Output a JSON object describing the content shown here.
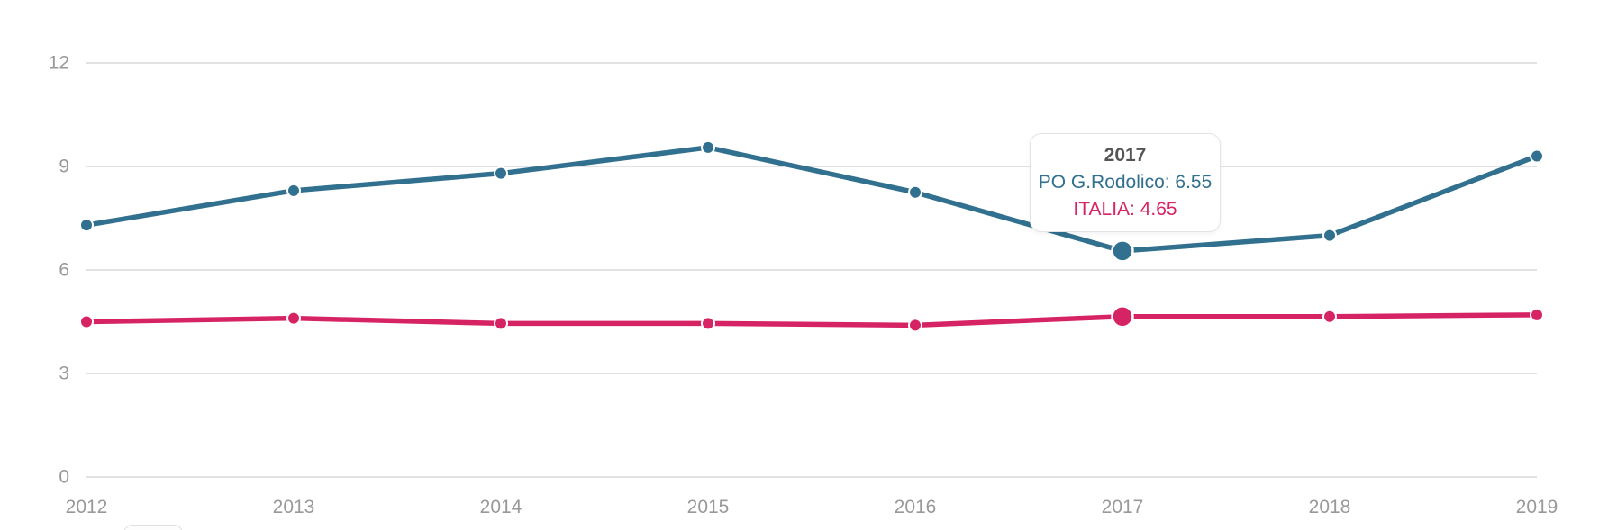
{
  "chart_data": {
    "type": "line",
    "categories": [
      "2012",
      "2013",
      "2014",
      "2015",
      "2016",
      "2017",
      "2018",
      "2019"
    ],
    "series": [
      {
        "name": "PO G.Rodolico",
        "color": "#31708e",
        "values": [
          7.3,
          8.3,
          8.8,
          9.55,
          8.25,
          6.55,
          7.0,
          9.3
        ]
      },
      {
        "name": "ITALIA",
        "color": "#d62363",
        "values": [
          4.5,
          4.6,
          4.45,
          4.45,
          4.4,
          4.65,
          4.65,
          4.7
        ]
      }
    ],
    "title": "",
    "xlabel": "",
    "ylabel": "",
    "ylim": [
      0,
      12
    ],
    "yticks": [
      "0",
      "3",
      "6",
      "9",
      "12"
    ],
    "grid": true,
    "legend_position": "none",
    "highlighted_category": "2017"
  },
  "tooltip": {
    "title": "2017",
    "rows": [
      {
        "series": "PO G.Rodolico",
        "value": "6.55",
        "text": "PO G.Rodolico: 6.55",
        "color": "#31708e"
      },
      {
        "series": "ITALIA",
        "value": "4.65",
        "text": "ITALIA: 4.65",
        "color": "#d62363"
      }
    ],
    "title_color": "#555555"
  },
  "style_colors": {
    "gridline": "#d8d8d8",
    "axis_label": "#999999",
    "background": "#ffffff"
  }
}
